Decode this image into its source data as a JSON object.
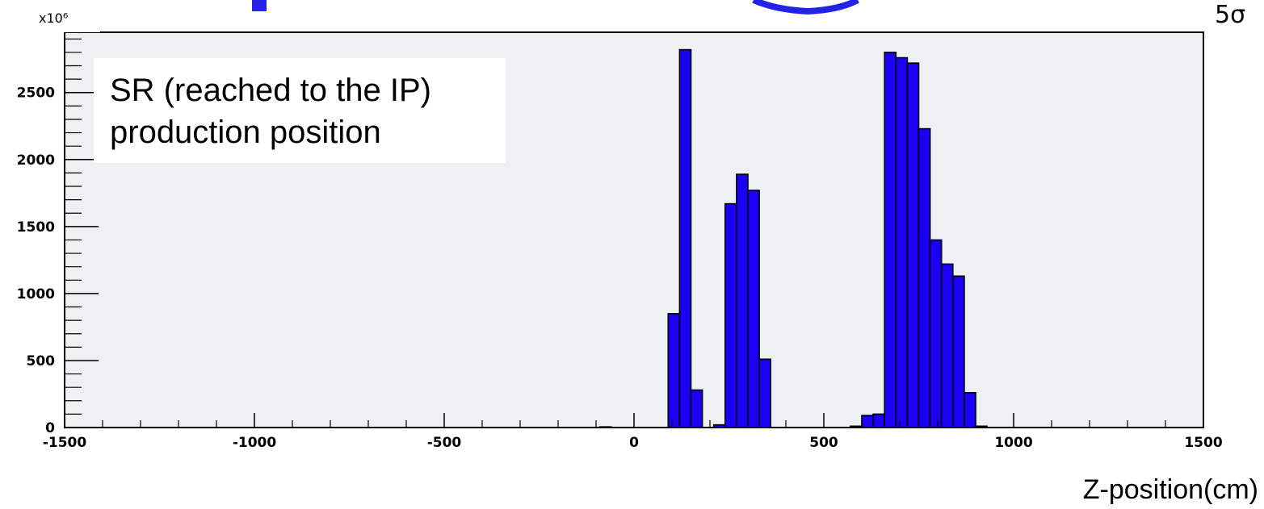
{
  "chart_data": {
    "type": "bar",
    "subtype": "histogram",
    "title": "",
    "xlabel": "Z-position(cm)",
    "ylabel": "",
    "y_multiplier_label": "x10⁶",
    "corner_label": "5σ",
    "legend_lines": [
      "SR (reached to the IP)",
      "production position"
    ],
    "xlim": [
      -1500,
      1500
    ],
    "ylim": [
      0,
      2950
    ],
    "x_ticks": [
      -1500,
      -1000,
      -500,
      0,
      500,
      1000,
      1500
    ],
    "x_tick_labels": [
      "-1500",
      "-1000",
      "-500",
      "0",
      "500",
      "1000",
      "1500"
    ],
    "y_ticks": [
      0,
      500,
      1000,
      1500,
      2000,
      2500
    ],
    "y_tick_labels": [
      "0",
      "500",
      "1000",
      "1500",
      "2000",
      "2500"
    ],
    "bin_width": 30,
    "bins": [
      {
        "x0": -90,
        "value": 5
      },
      {
        "x0": 90,
        "value": 850
      },
      {
        "x0": 120,
        "value": 2820
      },
      {
        "x0": 150,
        "value": 280
      },
      {
        "x0": 210,
        "value": 20
      },
      {
        "x0": 240,
        "value": 1670
      },
      {
        "x0": 270,
        "value": 1890
      },
      {
        "x0": 300,
        "value": 1770
      },
      {
        "x0": 330,
        "value": 510
      },
      {
        "x0": 570,
        "value": 10
      },
      {
        "x0": 600,
        "value": 90
      },
      {
        "x0": 630,
        "value": 100
      },
      {
        "x0": 660,
        "value": 2800
      },
      {
        "x0": 690,
        "value": 2760
      },
      {
        "x0": 720,
        "value": 2720
      },
      {
        "x0": 750,
        "value": 2230
      },
      {
        "x0": 780,
        "value": 1400
      },
      {
        "x0": 810,
        "value": 1220
      },
      {
        "x0": 840,
        "value": 1130
      },
      {
        "x0": 870,
        "value": 260
      },
      {
        "x0": 900,
        "value": 10
      }
    ],
    "colors": {
      "bar_fill": "#1a00f5",
      "bar_stroke": "#000000",
      "plot_background": "#eef1f1",
      "legend_background": "#ffffff",
      "partial_heading": "#2323e8"
    }
  }
}
